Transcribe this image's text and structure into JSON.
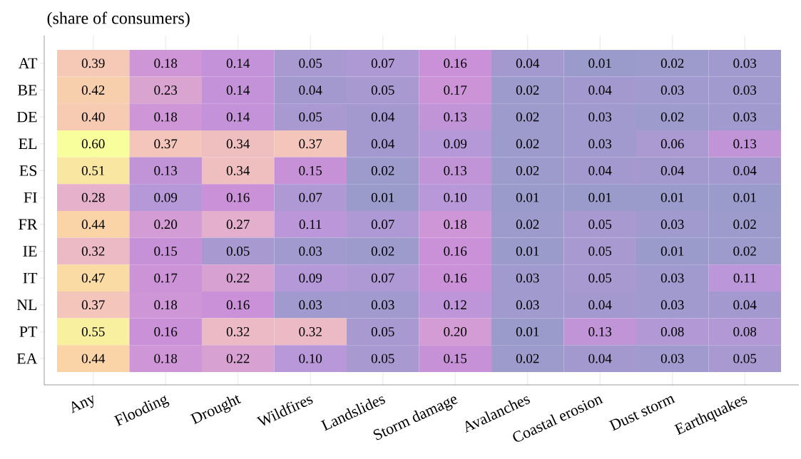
{
  "chart_data": {
    "type": "heatmap",
    "title": "(share of consumers)",
    "categories": [
      "Any",
      "Flooding",
      "Drought",
      "Wildfires",
      "Landslides",
      "Storm damage",
      "Avalanches",
      "Coastal erosion",
      "Dust storm",
      "Earthquakes"
    ],
    "y_categories": [
      "AT",
      "BE",
      "DE",
      "EL",
      "ES",
      "FI",
      "FR",
      "IE",
      "IT",
      "NL",
      "PT",
      "EA"
    ],
    "cells": [
      [
        0.39,
        0.18,
        0.14,
        0.05,
        0.07,
        0.16,
        0.04,
        0.01,
        0.02,
        0.03
      ],
      [
        0.42,
        0.23,
        0.14,
        0.04,
        0.05,
        0.17,
        0.02,
        0.04,
        0.03,
        0.03
      ],
      [
        0.4,
        0.18,
        0.14,
        0.05,
        0.04,
        0.13,
        0.02,
        0.03,
        0.02,
        0.03
      ],
      [
        0.6,
        0.37,
        0.34,
        0.37,
        0.04,
        0.09,
        0.02,
        0.03,
        0.06,
        0.13
      ],
      [
        0.51,
        0.13,
        0.34,
        0.15,
        0.02,
        0.13,
        0.02,
        0.04,
        0.04,
        0.04
      ],
      [
        0.28,
        0.09,
        0.16,
        0.07,
        0.01,
        0.1,
        0.01,
        0.01,
        0.01,
        0.01
      ],
      [
        0.44,
        0.2,
        0.27,
        0.11,
        0.07,
        0.18,
        0.02,
        0.05,
        0.03,
        0.02
      ],
      [
        0.32,
        0.15,
        0.05,
        0.03,
        0.02,
        0.16,
        0.01,
        0.05,
        0.01,
        0.02
      ],
      [
        0.47,
        0.17,
        0.22,
        0.09,
        0.07,
        0.16,
        0.03,
        0.05,
        0.03,
        0.11
      ],
      [
        0.37,
        0.18,
        0.16,
        0.03,
        0.03,
        0.12,
        0.03,
        0.04,
        0.03,
        0.04
      ],
      [
        0.55,
        0.16,
        0.32,
        0.32,
        0.05,
        0.2,
        0.01,
        0.13,
        0.08,
        0.08
      ],
      [
        0.44,
        0.18,
        0.22,
        0.1,
        0.05,
        0.15,
        0.02,
        0.04,
        0.03,
        0.05
      ]
    ],
    "cell_labels": [
      [
        "0.39",
        "0.18",
        "0.14",
        "0.05",
        "0.07",
        "0.16",
        "0.04",
        "0.01",
        "0.02",
        "0.03"
      ],
      [
        "0.42",
        "0.23",
        "0.14",
        "0.04",
        "0.05",
        "0.17",
        "0.02",
        "0.04",
        "0.03",
        "0.03"
      ],
      [
        "0.40",
        "0.18",
        "0.14",
        "0.05",
        "0.04",
        "0.13",
        "0.02",
        "0.03",
        "0.02",
        "0.03"
      ],
      [
        "0.60",
        "0.37",
        "0.34",
        "0.37",
        "0.04",
        "0.09",
        "0.02",
        "0.03",
        "0.06",
        "0.13"
      ],
      [
        "0.51",
        "0.13",
        "0.34",
        "0.15",
        "0.02",
        "0.13",
        "0.02",
        "0.04",
        "0.04",
        "0.04"
      ],
      [
        "0.28",
        "0.09",
        "0.16",
        "0.07",
        "0.01",
        "0.10",
        "0.01",
        "0.01",
        "0.01",
        "0.01"
      ],
      [
        "0.44",
        "0.20",
        "0.27",
        "0.11",
        "0.07",
        "0.18",
        "0.02",
        "0.05",
        "0.03",
        "0.02"
      ],
      [
        "0.32",
        "0.15",
        "0.05",
        "0.03",
        "0.02",
        "0.16",
        "0.01",
        "0.05",
        "0.01",
        "0.02"
      ],
      [
        "0.47",
        "0.17",
        "0.22",
        "0.09",
        "0.07",
        "0.16",
        "0.03",
        "0.05",
        "0.03",
        "0.11"
      ],
      [
        "0.37",
        "0.18",
        "0.16",
        "0.03",
        "0.03",
        "0.12",
        "0.03",
        "0.04",
        "0.03",
        "0.04"
      ],
      [
        "0.55",
        "0.16",
        "0.32",
        "0.32",
        "0.05",
        "0.20",
        "0.01",
        "0.13",
        "0.08",
        "0.08"
      ],
      [
        "0.44",
        "0.18",
        "0.22",
        "0.10",
        "0.05",
        "0.15",
        "0.02",
        "0.04",
        "0.03",
        "0.05"
      ]
    ],
    "grid": "x"
  }
}
